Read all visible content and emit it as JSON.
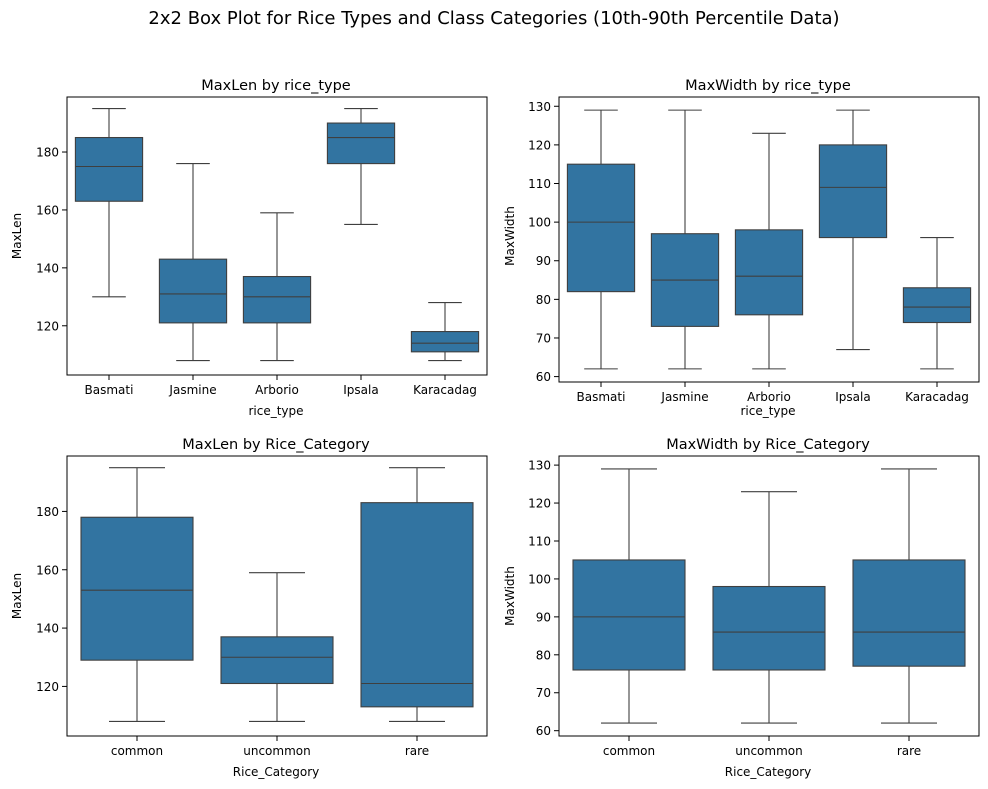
{
  "figure_title": "2x2 Box Plot for Rice Types and Class Categories (10th-90th Percentile Data)",
  "colors": {
    "box_fill": "#3274a1",
    "line": "#3f3f3f",
    "axis": "#000000"
  },
  "chart_data": [
    {
      "type": "box",
      "title": "MaxLen by rice_type",
      "xlabel": "rice_type",
      "ylabel": "MaxLen",
      "ylim": [
        103,
        199
      ],
      "yticks": [
        120,
        140,
        160,
        180
      ],
      "categories": [
        "Basmati",
        "Jasmine",
        "Arborio",
        "Ipsala",
        "Karacadag"
      ],
      "boxes": [
        {
          "whislo": 130,
          "q1": 163,
          "med": 175,
          "q3": 185,
          "whishi": 195
        },
        {
          "whislo": 108,
          "q1": 121,
          "med": 131,
          "q3": 143,
          "whishi": 176
        },
        {
          "whislo": 108,
          "q1": 121,
          "med": 130,
          "q3": 137,
          "whishi": 159
        },
        {
          "whislo": 155,
          "q1": 176,
          "med": 185,
          "q3": 190,
          "whishi": 195
        },
        {
          "whislo": 108,
          "q1": 111,
          "med": 114,
          "q3": 118,
          "whishi": 128
        }
      ]
    },
    {
      "type": "box",
      "title": "MaxWidth by rice_type",
      "xlabel": "rice_type",
      "ylabel": "MaxWidth",
      "ylim": [
        58.6,
        132.4
      ],
      "yticks": [
        60,
        70,
        80,
        90,
        100,
        110,
        120,
        130
      ],
      "categories": [
        "Basmati",
        "Jasmine",
        "Arborio",
        "Ipsala",
        "Karacadag"
      ],
      "boxes": [
        {
          "whislo": 62,
          "q1": 82,
          "med": 100,
          "q3": 115,
          "whishi": 129
        },
        {
          "whislo": 62,
          "q1": 73,
          "med": 85,
          "q3": 97,
          "whishi": 129
        },
        {
          "whislo": 62,
          "q1": 76,
          "med": 86,
          "q3": 98,
          "whishi": 123
        },
        {
          "whislo": 67,
          "q1": 96,
          "med": 109,
          "q3": 120,
          "whishi": 129
        },
        {
          "whislo": 62,
          "q1": 74,
          "med": 78,
          "q3": 83,
          "whishi": 96
        }
      ]
    },
    {
      "type": "box",
      "title": "MaxLen by Rice_Category",
      "xlabel": "Rice_Category",
      "ylabel": "MaxLen",
      "ylim": [
        103,
        199
      ],
      "yticks": [
        120,
        140,
        160,
        180
      ],
      "categories": [
        "common",
        "uncommon",
        "rare"
      ],
      "boxes": [
        {
          "whislo": 108,
          "q1": 129,
          "med": 153,
          "q3": 178,
          "whishi": 195
        },
        {
          "whislo": 108,
          "q1": 121,
          "med": 130,
          "q3": 137,
          "whishi": 159
        },
        {
          "whislo": 108,
          "q1": 113,
          "med": 121,
          "q3": 183,
          "whishi": 195
        }
      ]
    },
    {
      "type": "box",
      "title": "MaxWidth by Rice_Category",
      "xlabel": "Rice_Category",
      "ylabel": "MaxWidth",
      "ylim": [
        58.6,
        132.4
      ],
      "yticks": [
        60,
        70,
        80,
        90,
        100,
        110,
        120,
        130
      ],
      "categories": [
        "common",
        "uncommon",
        "rare"
      ],
      "boxes": [
        {
          "whislo": 62,
          "q1": 76,
          "med": 90,
          "q3": 105,
          "whishi": 129
        },
        {
          "whislo": 62,
          "q1": 76,
          "med": 86,
          "q3": 98,
          "whishi": 123
        },
        {
          "whislo": 62,
          "q1": 77,
          "med": 86,
          "q3": 105,
          "whishi": 129
        }
      ]
    }
  ]
}
